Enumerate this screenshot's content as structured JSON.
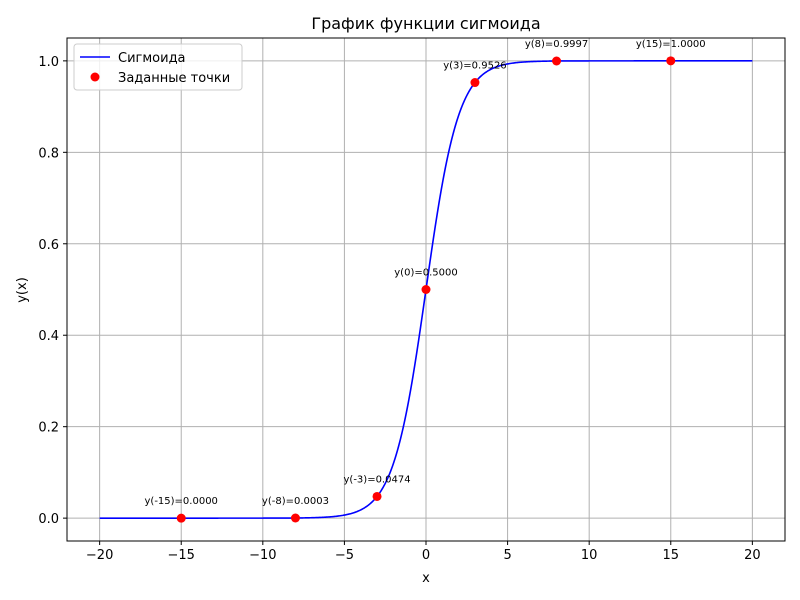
{
  "chart_data": {
    "type": "line",
    "title": "График функции сигмоида",
    "xlabel": "x",
    "ylabel": "y(x)",
    "xlim": [
      -22,
      22
    ],
    "ylim": [
      -0.05,
      1.05
    ],
    "xticks": [
      -20,
      -15,
      -10,
      -5,
      0,
      5,
      10,
      15,
      20
    ],
    "xtick_labels": [
      "−20",
      "−15",
      "−10",
      "−5",
      "0",
      "5",
      "10",
      "15",
      "20"
    ],
    "yticks": [
      0.0,
      0.2,
      0.4,
      0.6,
      0.8,
      1.0
    ],
    "ytick_labels": [
      "0.0",
      "0.2",
      "0.4",
      "0.6",
      "0.8",
      "1.0"
    ],
    "grid": true,
    "legend_position": "top-left",
    "series": [
      {
        "name": "Сигмоида",
        "kind": "line",
        "function": "sigmoid",
        "x_range": [
          -20,
          20
        ],
        "color": "#0000ff"
      },
      {
        "name": "Заданные точки",
        "kind": "scatter",
        "color": "#ff0000",
        "points": [
          {
            "x": -15,
            "y": 0.0,
            "label": "y(-15)=0.0000"
          },
          {
            "x": -8,
            "y": 0.0003,
            "label": "y(-8)=0.0003"
          },
          {
            "x": -3,
            "y": 0.0474,
            "label": "y(-3)=0.0474"
          },
          {
            "x": 0,
            "y": 0.5,
            "label": "y(0)=0.5000"
          },
          {
            "x": 3,
            "y": 0.9526,
            "label": "y(3)=0.9526"
          },
          {
            "x": 8,
            "y": 0.9997,
            "label": "y(8)=0.9997"
          },
          {
            "x": 15,
            "y": 1.0,
            "label": "y(15)=1.0000"
          }
        ]
      }
    ]
  }
}
